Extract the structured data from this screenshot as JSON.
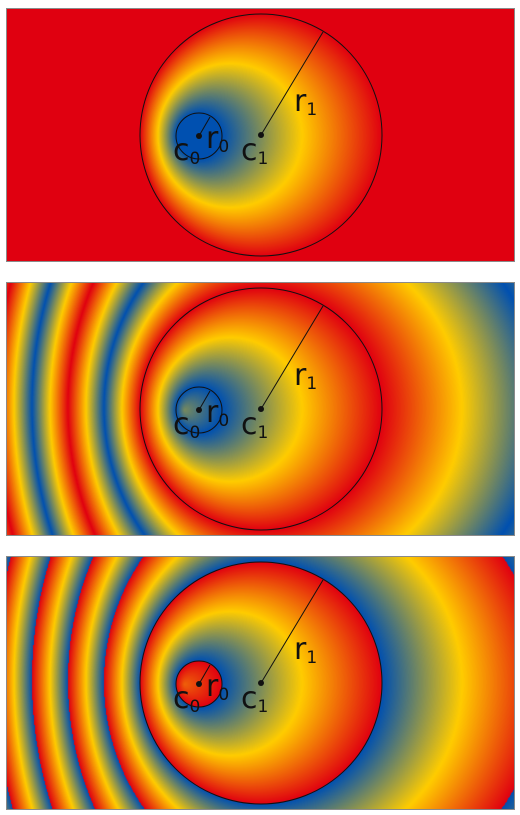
{
  "colors": {
    "background": "#ffffff",
    "border": "#8a8a8a",
    "stops": [
      "#0050b0",
      "#ffcc00",
      "#e00010"
    ],
    "outline": "#111111"
  },
  "labels": {
    "c0": "c",
    "c0_sub": "0",
    "r0": "r",
    "r0_sub": "0",
    "c1": "c",
    "c1_sub": "1",
    "r1": "r",
    "r1_sub": "1"
  },
  "panels": [
    {
      "name": "pad",
      "spread": "pad"
    },
    {
      "name": "reflect",
      "spread": "reflect"
    },
    {
      "name": "repeat",
      "spread": "repeat"
    }
  ]
}
